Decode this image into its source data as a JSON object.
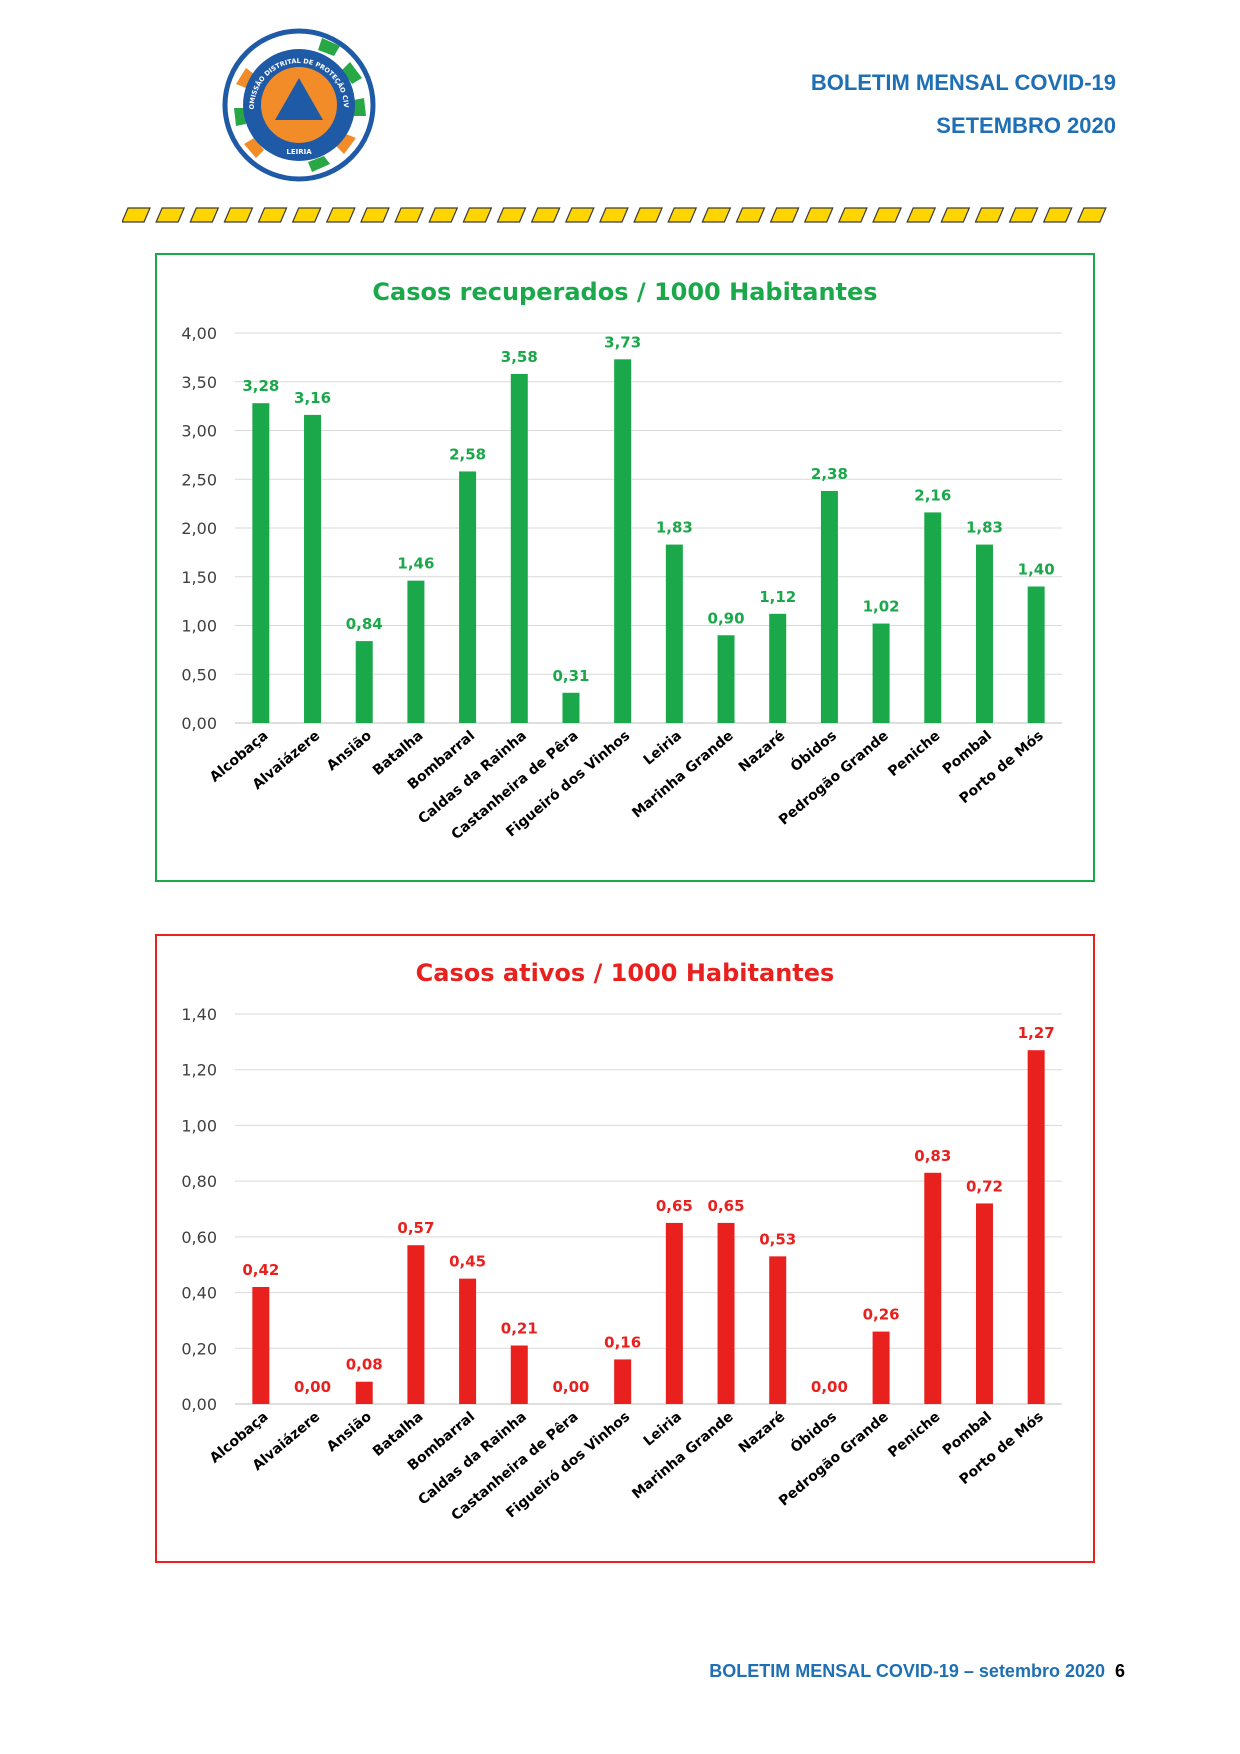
{
  "header": {
    "line1": "BOLETIM MENSAL COVID-19",
    "line2": "SETEMBRO 2020",
    "logo_ring_text": "COMISSÃO DISTRITAL DE PROTEÇÃO CIVIL",
    "logo_bottom_text": "LEIRIA"
  },
  "footer": {
    "text": "BOLETIM MENSAL COVID-19 – setembro 2020",
    "page_number": "6"
  },
  "colors": {
    "header_blue": "#1f6fb4",
    "green": "#1aa84a",
    "red": "#e8211f",
    "stripe_yellow": "#ffd500"
  },
  "chart_data": [
    {
      "type": "bar",
      "title": "Casos recuperados / 1000 Habitantes",
      "color": "#1aa84a",
      "categories": [
        "Alcobaça",
        "Alvaiázere",
        "Ansião",
        "Batalha",
        "Bombarral",
        "Caldas da Rainha",
        "Castanheira de Pêra",
        "Figueiró dos Vinhos",
        "Leiria",
        "Marinha Grande",
        "Nazaré",
        "Óbidos",
        "Pedrogão Grande",
        "Peniche",
        "Pombal",
        "Porto de Mós"
      ],
      "values": [
        3.28,
        3.16,
        0.84,
        1.46,
        2.58,
        3.58,
        0.31,
        3.73,
        1.83,
        0.9,
        1.12,
        2.38,
        1.02,
        2.16,
        1.83,
        1.4
      ],
      "value_labels": [
        "3,28",
        "3,16",
        "0,84",
        "1,46",
        "2,58",
        "3,58",
        "0,31",
        "3,73",
        "1,83",
        "0,90",
        "1,12",
        "2,38",
        "1,02",
        "2,16",
        "1,83",
        "1,40"
      ],
      "yticks": [
        "0,00",
        "0,50",
        "1,00",
        "1,50",
        "2,00",
        "2,50",
        "3,00",
        "3,50",
        "4,00"
      ],
      "ylim": [
        0,
        4.0
      ],
      "grid": true
    },
    {
      "type": "bar",
      "title": "Casos ativos / 1000 Habitantes",
      "color": "#e8211f",
      "categories": [
        "Alcobaça",
        "Alvaiázere",
        "Ansião",
        "Batalha",
        "Bombarral",
        "Caldas da Rainha",
        "Castanheira de Pêra",
        "Figueiró dos Vinhos",
        "Leiria",
        "Marinha Grande",
        "Nazaré",
        "Óbidos",
        "Pedrogão Grande",
        "Peniche",
        "Pombal",
        "Porto de Mós"
      ],
      "values": [
        0.42,
        0.0,
        0.08,
        0.57,
        0.45,
        0.21,
        0.0,
        0.16,
        0.65,
        0.65,
        0.53,
        0.0,
        0.26,
        0.83,
        0.72,
        1.27
      ],
      "value_labels": [
        "0,42",
        "0,00",
        "0,08",
        "0,57",
        "0,45",
        "0,21",
        "0,00",
        "0,16",
        "0,65",
        "0,65",
        "0,53",
        "0,00",
        "0,26",
        "0,83",
        "0,72",
        "1,27"
      ],
      "yticks": [
        "0,00",
        "0,20",
        "0,40",
        "0,60",
        "0,80",
        "1,00",
        "1,20",
        "1,40"
      ],
      "ylim": [
        0,
        1.4
      ],
      "grid": true
    }
  ]
}
